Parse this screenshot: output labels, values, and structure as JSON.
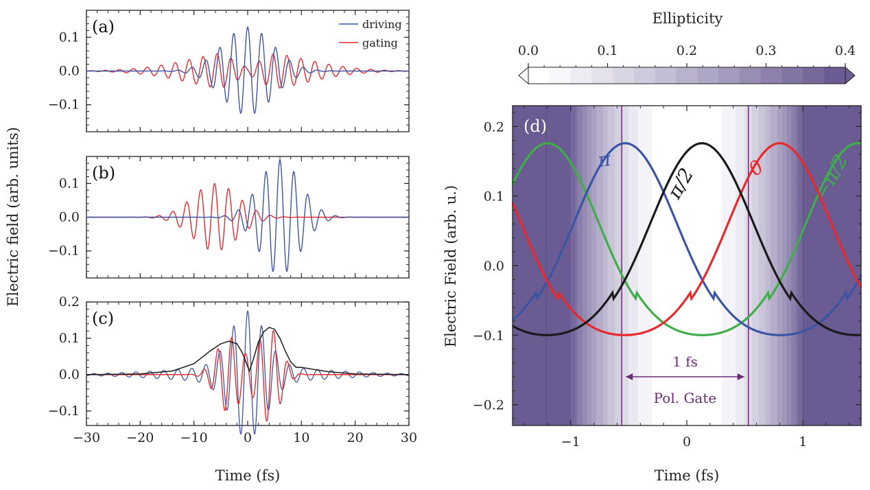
{
  "figure": {
    "y_axis_label_left": "Electric field (arb. units)",
    "x_axis_label_left": "Time (fs)",
    "y_axis_label_right": "Electric Field (arb. u.)",
    "x_axis_label_right": "Time (fs)",
    "colorbar_label": "Ellipticity"
  },
  "colors": {
    "driving": "#3b54a4",
    "gating": "#e8282b",
    "envelope": "#1a1a1a",
    "green": "#3fae49",
    "purple": "#6b2a78",
    "colormap_low": "#ffffff",
    "colormap_high": "#6a5b93"
  },
  "chart_data": [
    {
      "id": "a",
      "type": "line",
      "panel_label": "(a)",
      "xlim": [
        -30,
        30
      ],
      "ylim": [
        -0.18,
        0.18
      ],
      "xticks": [
        -30,
        -20,
        -10,
        0,
        10,
        20,
        30
      ],
      "yticks": [
        -0.1,
        0.0,
        0.1
      ],
      "ytick_labels": [
        "−0.1",
        "0.0",
        "0.1"
      ],
      "xtick_labels": [
        "−30",
        "−20",
        "−10",
        "0",
        "10",
        "20",
        "30"
      ],
      "legend": [
        "driving",
        "gating"
      ],
      "series": [
        {
          "name": "driving",
          "peak_amplitude": 0.13,
          "center_fs": 0,
          "fwhm_fs": 11,
          "period_fs": 2.6
        },
        {
          "name": "gating",
          "peak_amplitude": 0.06,
          "center_fs": 0,
          "fwhm_fs": 24,
          "period_fs": 2.6,
          "note": "gating field shows beating with a node near 0 fs"
        }
      ]
    },
    {
      "id": "b",
      "type": "line",
      "panel_label": "(b)",
      "xlim": [
        -30,
        30
      ],
      "ylim": [
        -0.18,
        0.18
      ],
      "xticks": [
        -30,
        -20,
        -10,
        0,
        10,
        20,
        30
      ],
      "yticks": [
        -0.1,
        0.0,
        0.1
      ],
      "ytick_labels": [
        "−0.1",
        "0.0",
        "0.1"
      ],
      "xtick_labels": [
        "−30",
        "−20",
        "−10",
        "0",
        "10",
        "20",
        "30"
      ],
      "series": [
        {
          "name": "driving",
          "peak_amplitude": 0.17,
          "center_fs": 6,
          "fwhm_fs": 9,
          "period_fs": 2.6
        },
        {
          "name": "gating",
          "peak_amplitude": 0.1,
          "center_fs": -6,
          "fwhm_fs": 10,
          "period_fs": 2.6
        }
      ]
    },
    {
      "id": "c",
      "type": "line",
      "panel_label": "(c)",
      "xlim": [
        -30,
        30
      ],
      "ylim": [
        -0.14,
        0.2
      ],
      "xticks": [
        -30,
        -20,
        -10,
        0,
        10,
        20,
        30
      ],
      "yticks": [
        -0.1,
        0.0,
        0.1,
        0.2
      ],
      "ytick_labels": [
        "−0.1",
        "0.0",
        "0.1",
        "0.2"
      ],
      "xtick_labels": [
        "−30",
        "−20",
        "−10",
        "0",
        "10",
        "20",
        "30"
      ],
      "series": [
        {
          "name": "driving",
          "peak_amplitude": 0.175,
          "center_fs": 0,
          "fwhm_fs": 8,
          "period_fs": 2.6
        },
        {
          "name": "gating",
          "peak_amplitude": 0.13,
          "center_fs": 0,
          "fwhm_fs": 8,
          "period_fs": 2.6
        },
        {
          "name": "envelope",
          "points": [
            [
              -30,
              0
            ],
            [
              -20,
              0.002
            ],
            [
              -14,
              0.01
            ],
            [
              -10,
              0.03
            ],
            [
              -7,
              0.065
            ],
            [
              -5,
              0.085
            ],
            [
              -3.5,
              0.092
            ],
            [
              -2,
              0.085
            ],
            [
              -1,
              0.06
            ],
            [
              -0.2,
              0.03
            ],
            [
              0.3,
              0.01
            ],
            [
              1,
              0.04
            ],
            [
              2,
              0.09
            ],
            [
              3,
              0.118
            ],
            [
              4,
              0.13
            ],
            [
              5,
              0.125
            ],
            [
              6,
              0.1
            ],
            [
              7,
              0.065
            ],
            [
              8,
              0.035
            ],
            [
              9,
              0.02
            ],
            [
              10,
              0.02
            ],
            [
              12,
              0.015
            ],
            [
              15,
              0.008
            ],
            [
              20,
              0.002
            ],
            [
              30,
              0
            ]
          ]
        }
      ]
    },
    {
      "id": "d",
      "type": "line",
      "panel_label": "(d)",
      "xlim": [
        -1.5,
        1.5
      ],
      "ylim": [
        -0.23,
        0.23
      ],
      "xticks": [
        -1,
        0,
        1
      ],
      "xtick_labels": [
        "−1",
        "0",
        "1"
      ],
      "yticks": [
        -0.2,
        -0.1,
        0.0,
        0.1,
        0.2
      ],
      "ytick_labels": [
        "−0.2",
        "−0.1",
        "0.0",
        "0.1",
        "0.2"
      ],
      "background": "ellipticity heatmap vs time, white near 0 fs, darkest beyond ±1 fs",
      "series": [
        {
          "name": "0",
          "label": "0",
          "color": "red",
          "phase": 0,
          "shift_fs": 0.8
        },
        {
          "name": "pi/2",
          "label": "π/2",
          "color": "black",
          "phase": 1.5708,
          "shift_fs": 0.13
        },
        {
          "name": "pi",
          "label": "π",
          "color": "blue",
          "phase": 3.1416,
          "shift_fs": -0.53
        },
        {
          "name": "-pi/2",
          "label": "−π/2",
          "color": "green",
          "phase": -1.5708,
          "shift_fs": -1.2
        }
      ],
      "curve_model": {
        "max": 0.176,
        "min": -0.088,
        "period_fs": 2.67
      },
      "gate": {
        "start_fs": -0.56,
        "end_fs": 0.53,
        "width_label": "1 fs",
        "name_label": "Pol. Gate"
      }
    },
    {
      "id": "colorbar",
      "type": "heatmap",
      "label": "Ellipticity",
      "range": [
        0.0,
        0.4
      ],
      "ticks": [
        0.0,
        0.1,
        0.2,
        0.3,
        0.4
      ],
      "tick_labels": [
        "0.0",
        "0.1",
        "0.2",
        "0.3",
        "0.4"
      ],
      "levels": 15,
      "extend": "both"
    }
  ]
}
